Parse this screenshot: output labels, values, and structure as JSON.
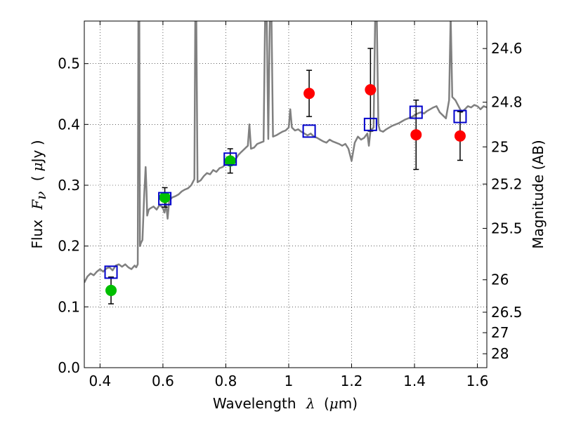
{
  "chart_data": {
    "type": "scatter",
    "xlabel": {
      "prefix": "Wavelength",
      "symbol": "λ",
      "unit_open": "(",
      "unit_mu": "μ",
      "unit_rest": "m)"
    },
    "ylabel": {
      "prefix": "Flux",
      "symbol": "F",
      "sub": "ν",
      "unit_open": "(",
      "unit_mu": "μ",
      "unit_rest": "Jy )"
    },
    "ylabel_right": "Magnitude (AB)",
    "xlim": [
      0.35,
      1.63
    ],
    "ylim": [
      0.0,
      0.57
    ],
    "grid": true,
    "x_ticks": [
      {
        "v": 0.4,
        "label": "0.4"
      },
      {
        "v": 0.6,
        "label": "0.6"
      },
      {
        "v": 0.8,
        "label": "0.8"
      },
      {
        "v": 1.0,
        "label": "1"
      },
      {
        "v": 1.2,
        "label": "1.2"
      },
      {
        "v": 1.4,
        "label": "1.4"
      },
      {
        "v": 1.6,
        "label": "1.6"
      }
    ],
    "y_ticks": [
      {
        "v": 0.0,
        "label": "0.0"
      },
      {
        "v": 0.1,
        "label": "0.1"
      },
      {
        "v": 0.2,
        "label": "0.2"
      },
      {
        "v": 0.3,
        "label": "0.3"
      },
      {
        "v": 0.4,
        "label": "0.4"
      },
      {
        "v": 0.5,
        "label": "0.5"
      }
    ],
    "mag_ticks": [
      {
        "mag": 24.6,
        "label": "24.6"
      },
      {
        "mag": 24.8,
        "label": "24.8"
      },
      {
        "mag": 25.0,
        "label": "25"
      },
      {
        "mag": 25.2,
        "label": "25.2"
      },
      {
        "mag": 25.5,
        "label": "25.5"
      },
      {
        "mag": 26.0,
        "label": "26"
      },
      {
        "mag": 26.5,
        "label": "26.5"
      },
      {
        "mag": 27.0,
        "label": "27"
      },
      {
        "mag": 28.0,
        "label": "28"
      }
    ],
    "model_spectrum": {
      "color": "#808080",
      "points": [
        [
          0.35,
          0.14
        ],
        [
          0.36,
          0.15
        ],
        [
          0.37,
          0.155
        ],
        [
          0.38,
          0.152
        ],
        [
          0.39,
          0.158
        ],
        [
          0.4,
          0.162
        ],
        [
          0.41,
          0.158
        ],
        [
          0.42,
          0.163
        ],
        [
          0.43,
          0.165
        ],
        [
          0.44,
          0.16
        ],
        [
          0.45,
          0.168
        ],
        [
          0.46,
          0.17
        ],
        [
          0.47,
          0.166
        ],
        [
          0.48,
          0.17
        ],
        [
          0.49,
          0.165
        ],
        [
          0.5,
          0.162
        ],
        [
          0.51,
          0.168
        ],
        [
          0.515,
          0.165
        ],
        [
          0.52,
          0.17
        ],
        [
          0.522,
          0.58
        ],
        [
          0.525,
          0.58
        ],
        [
          0.527,
          0.2
        ],
        [
          0.53,
          0.205
        ],
        [
          0.535,
          0.21
        ],
        [
          0.54,
          0.28
        ],
        [
          0.545,
          0.33
        ],
        [
          0.548,
          0.29
        ],
        [
          0.55,
          0.25
        ],
        [
          0.555,
          0.26
        ],
        [
          0.56,
          0.262
        ],
        [
          0.57,
          0.265
        ],
        [
          0.58,
          0.26
        ],
        [
          0.59,
          0.268
        ],
        [
          0.6,
          0.262
        ],
        [
          0.605,
          0.255
        ],
        [
          0.61,
          0.27
        ],
        [
          0.615,
          0.245
        ],
        [
          0.62,
          0.275
        ],
        [
          0.63,
          0.28
        ],
        [
          0.64,
          0.282
        ],
        [
          0.65,
          0.285
        ],
        [
          0.66,
          0.29
        ],
        [
          0.67,
          0.293
        ],
        [
          0.68,
          0.295
        ],
        [
          0.69,
          0.3
        ],
        [
          0.7,
          0.31
        ],
        [
          0.703,
          0.58
        ],
        [
          0.706,
          0.58
        ],
        [
          0.71,
          0.305
        ],
        [
          0.72,
          0.308
        ],
        [
          0.73,
          0.315
        ],
        [
          0.74,
          0.32
        ],
        [
          0.75,
          0.318
        ],
        [
          0.76,
          0.325
        ],
        [
          0.77,
          0.322
        ],
        [
          0.78,
          0.328
        ],
        [
          0.79,
          0.33
        ],
        [
          0.8,
          0.335
        ],
        [
          0.81,
          0.34
        ],
        [
          0.82,
          0.345
        ],
        [
          0.83,
          0.342
        ],
        [
          0.84,
          0.35
        ],
        [
          0.85,
          0.355
        ],
        [
          0.86,
          0.36
        ],
        [
          0.87,
          0.365
        ],
        [
          0.875,
          0.4
        ],
        [
          0.88,
          0.36
        ],
        [
          0.89,
          0.362
        ],
        [
          0.9,
          0.368
        ],
        [
          0.91,
          0.37
        ],
        [
          0.92,
          0.372
        ],
        [
          0.925,
          0.58
        ],
        [
          0.93,
          0.58
        ],
        [
          0.935,
          0.376
        ],
        [
          0.94,
          0.58
        ],
        [
          0.945,
          0.58
        ],
        [
          0.95,
          0.38
        ],
        [
          0.96,
          0.382
        ],
        [
          0.97,
          0.385
        ],
        [
          0.98,
          0.388
        ],
        [
          0.99,
          0.39
        ],
        [
          1.0,
          0.395
        ],
        [
          1.005,
          0.425
        ],
        [
          1.01,
          0.395
        ],
        [
          1.02,
          0.39
        ],
        [
          1.03,
          0.392
        ],
        [
          1.04,
          0.388
        ],
        [
          1.05,
          0.385
        ],
        [
          1.06,
          0.382
        ],
        [
          1.07,
          0.385
        ],
        [
          1.08,
          0.38
        ],
        [
          1.09,
          0.378
        ],
        [
          1.1,
          0.375
        ],
        [
          1.11,
          0.372
        ],
        [
          1.12,
          0.37
        ],
        [
          1.13,
          0.375
        ],
        [
          1.14,
          0.372
        ],
        [
          1.15,
          0.37
        ],
        [
          1.16,
          0.368
        ],
        [
          1.17,
          0.365
        ],
        [
          1.18,
          0.368
        ],
        [
          1.19,
          0.36
        ],
        [
          1.2,
          0.34
        ],
        [
          1.21,
          0.37
        ],
        [
          1.22,
          0.38
        ],
        [
          1.23,
          0.375
        ],
        [
          1.24,
          0.378
        ],
        [
          1.25,
          0.385
        ],
        [
          1.255,
          0.365
        ],
        [
          1.26,
          0.39
        ],
        [
          1.27,
          0.395
        ],
        [
          1.275,
          0.58
        ],
        [
          1.28,
          0.58
        ],
        [
          1.285,
          0.4
        ],
        [
          1.29,
          0.39
        ],
        [
          1.3,
          0.388
        ],
        [
          1.31,
          0.392
        ],
        [
          1.32,
          0.395
        ],
        [
          1.33,
          0.398
        ],
        [
          1.34,
          0.4
        ],
        [
          1.35,
          0.402
        ],
        [
          1.36,
          0.405
        ],
        [
          1.37,
          0.408
        ],
        [
          1.38,
          0.41
        ],
        [
          1.39,
          0.412
        ],
        [
          1.4,
          0.415
        ],
        [
          1.41,
          0.418
        ],
        [
          1.42,
          0.42
        ],
        [
          1.43,
          0.418
        ],
        [
          1.44,
          0.422
        ],
        [
          1.45,
          0.425
        ],
        [
          1.46,
          0.428
        ],
        [
          1.47,
          0.43
        ],
        [
          1.48,
          0.42
        ],
        [
          1.49,
          0.415
        ],
        [
          1.5,
          0.41
        ],
        [
          1.51,
          0.44
        ],
        [
          1.515,
          0.58
        ],
        [
          1.52,
          0.445
        ],
        [
          1.53,
          0.44
        ],
        [
          1.54,
          0.43
        ],
        [
          1.55,
          0.42
        ],
        [
          1.56,
          0.425
        ],
        [
          1.57,
          0.43
        ],
        [
          1.58,
          0.428
        ],
        [
          1.59,
          0.432
        ],
        [
          1.6,
          0.43
        ],
        [
          1.61,
          0.425
        ],
        [
          1.62,
          0.43
        ],
        [
          1.63,
          0.428
        ]
      ]
    },
    "series": [
      {
        "marker": "circle",
        "color": "#00bf00",
        "points": [
          {
            "x": 0.435,
            "y": 0.127,
            "err": 0.022
          },
          {
            "x": 0.606,
            "y": 0.28,
            "err": 0.016
          },
          {
            "x": 0.814,
            "y": 0.34,
            "err": 0.02
          }
        ]
      },
      {
        "marker": "circle",
        "color": "#ff0000",
        "points": [
          {
            "x": 1.065,
            "y": 0.451,
            "err": 0.038
          },
          {
            "x": 1.26,
            "y": 0.457,
            "err": 0.068
          },
          {
            "x": 1.405,
            "y": 0.383,
            "err": 0.057
          },
          {
            "x": 1.545,
            "y": 0.381,
            "err": 0.04
          }
        ]
      },
      {
        "marker": "open-square",
        "color": "#0000cc",
        "points": [
          {
            "x": 0.435,
            "y": 0.157
          },
          {
            "x": 0.606,
            "y": 0.278
          },
          {
            "x": 0.814,
            "y": 0.343
          },
          {
            "x": 1.065,
            "y": 0.389
          },
          {
            "x": 1.26,
            "y": 0.4
          },
          {
            "x": 1.405,
            "y": 0.42
          },
          {
            "x": 1.545,
            "y": 0.413
          }
        ]
      }
    ]
  }
}
